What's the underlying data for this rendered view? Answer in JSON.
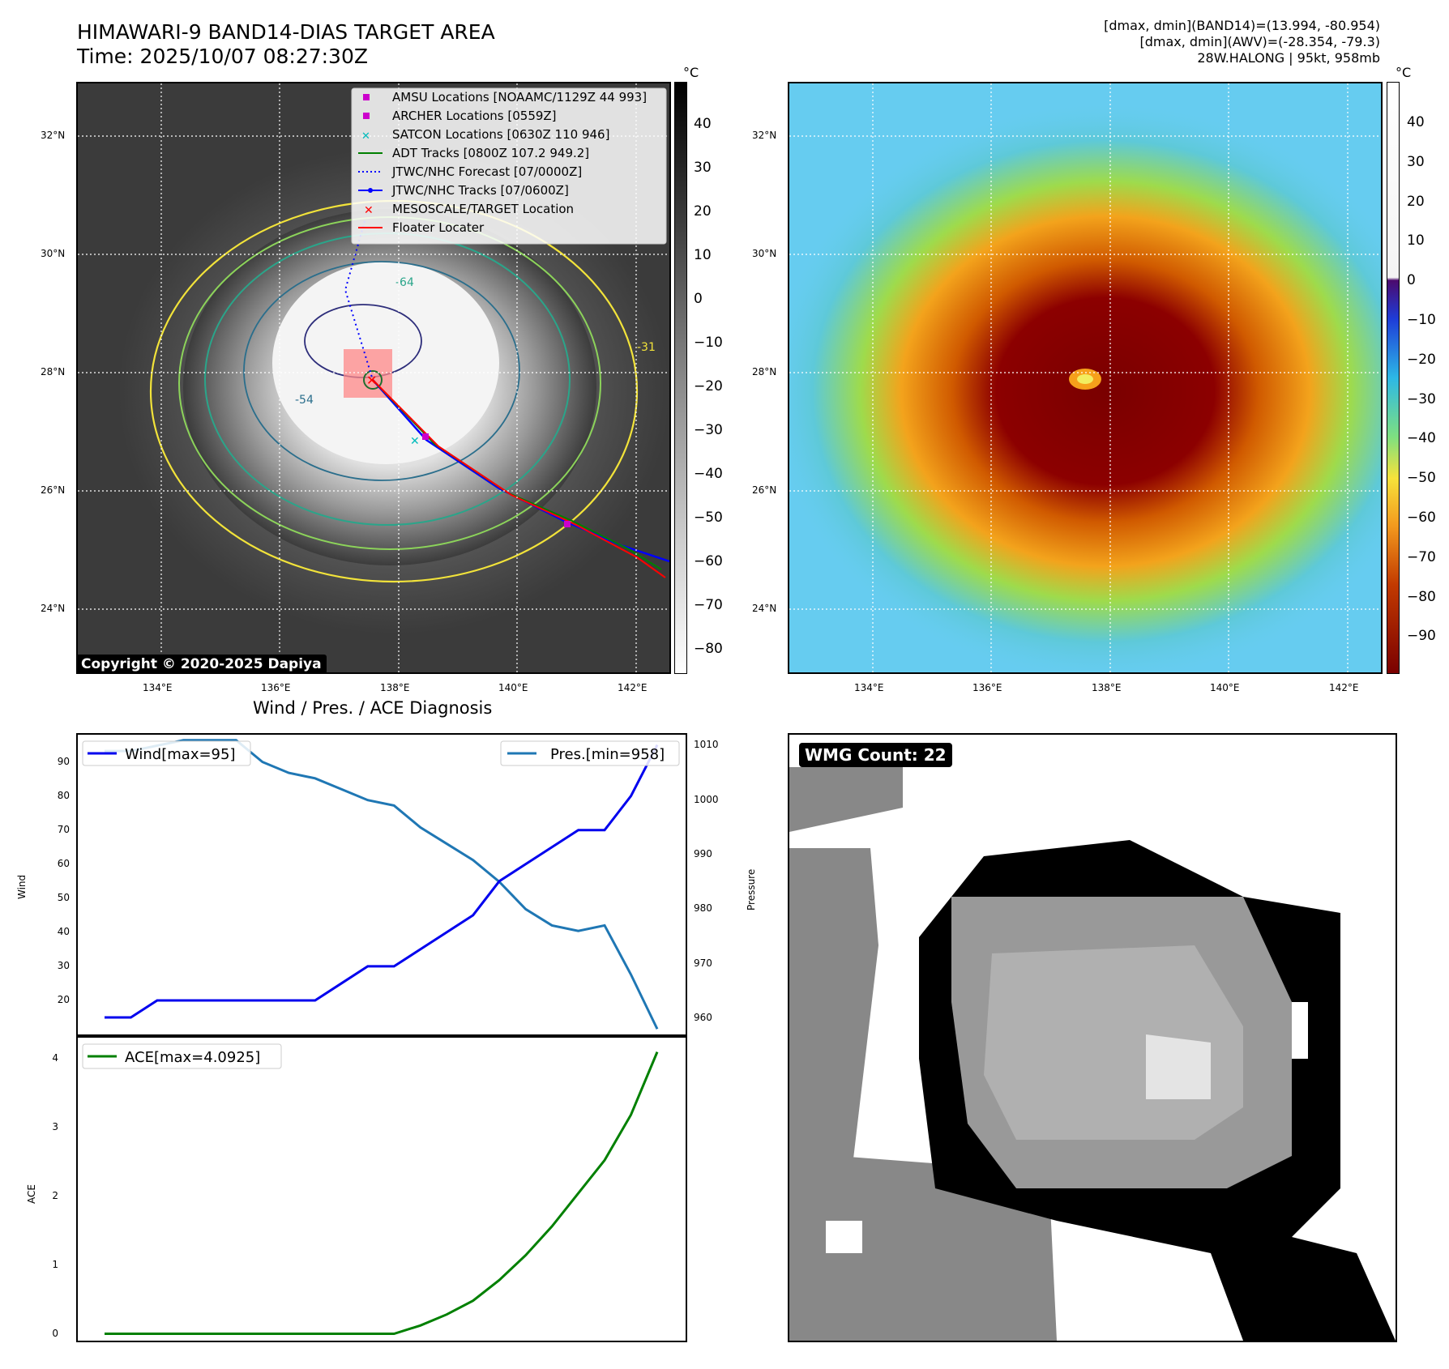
{
  "header": {
    "title_line1": "HIMAWARI-9 BAND14-DIAS TARGET AREA",
    "title_line2": "Time: 2025/10/07 08:27:30Z",
    "info_line1": "[dmax, dmin](BAND14)=(13.994, -80.954)",
    "info_line2": "[dmax, dmin](AWV)=(-28.354, -79.3)",
    "info_line3": "28W.HALONG | 95kt, 958mb"
  },
  "colors": {
    "wind": "#0000ee",
    "pressure": "#1f77b4",
    "ace": "#008000",
    "adt": "#008000",
    "jtwc": "#0000ff",
    "amsu": "#cc00cc",
    "satcon": "#00bbbb",
    "floater": "#ff0000"
  },
  "map": {
    "lon_labels": [
      "134°E",
      "136°E",
      "138°E",
      "140°E",
      "142°E"
    ],
    "lat_labels": [
      "32°N",
      "30°N",
      "28°N",
      "26°N",
      "24°N"
    ],
    "unit": "°C",
    "copyright": "Copyright © 2020-2025 Dapiya",
    "contour_labels": [
      "-64",
      "-54",
      "-31"
    ],
    "legend": [
      "AMSU Locations [NOAAMC/1129Z 44 993]",
      "ARCHER Locations [0559Z]",
      "SATCON Locations [0630Z 110 946]",
      "ADT Tracks [0800Z 107.2 949.2]",
      "JTWC/NHC Forecast [07/0000Z]",
      "JTWC/NHC Tracks [07/0600Z]",
      "MESOSCALE/TARGET Location",
      "Floater Locater"
    ],
    "gray_colorbar_ticks": [
      "40",
      "30",
      "20",
      "10",
      "0",
      "−10",
      "−20",
      "−30",
      "−40",
      "−50",
      "−60",
      "−70",
      "−80"
    ],
    "color_colorbar_ticks": [
      "40",
      "30",
      "20",
      "10",
      "0",
      "−10",
      "−20",
      "−30",
      "−40",
      "−50",
      "−60",
      "−70",
      "−80",
      "−90"
    ]
  },
  "chart_data": [
    {
      "type": "line",
      "title": "Wind / Pres. / ACE Diagnosis",
      "ylabel": "Wind",
      "y2label": "Pressure",
      "ylim": [
        10,
        98
      ],
      "y2lim": [
        957,
        1012
      ],
      "yticks": [
        "20",
        "30",
        "40",
        "50",
        "60",
        "70",
        "80",
        "90"
      ],
      "y2ticks": [
        "960",
        "970",
        "980",
        "990",
        "1000",
        "1010"
      ],
      "series": [
        {
          "name": "Wind[max=95]",
          "axis": "left",
          "values": [
            15,
            15,
            20,
            20,
            20,
            20,
            20,
            20,
            20,
            25,
            30,
            30,
            35,
            40,
            45,
            55,
            60,
            65,
            70,
            70,
            80,
            95
          ]
        },
        {
          "name": "Pres.[min=958]",
          "axis": "right",
          "values": [
            1009,
            1009,
            1010,
            1011,
            1011,
            1011,
            1007,
            1005,
            1004,
            1002,
            1000,
            999,
            995,
            992,
            989,
            985,
            980,
            977,
            976,
            977,
            968,
            958
          ]
        }
      ]
    },
    {
      "type": "line",
      "ylabel": "ACE",
      "ylim": [
        -0.1,
        4.3
      ],
      "yticks": [
        "0",
        "1",
        "2",
        "3",
        "4"
      ],
      "series": [
        {
          "name": "ACE[max=4.0925]",
          "values": [
            0,
            0,
            0,
            0,
            0,
            0,
            0,
            0,
            0,
            0,
            0,
            0,
            0.12,
            0.28,
            0.48,
            0.78,
            1.14,
            1.56,
            2.04,
            2.52,
            3.18,
            4.0925
          ]
        }
      ]
    }
  ],
  "wmg": {
    "count_label": "WMG Count: 22"
  }
}
